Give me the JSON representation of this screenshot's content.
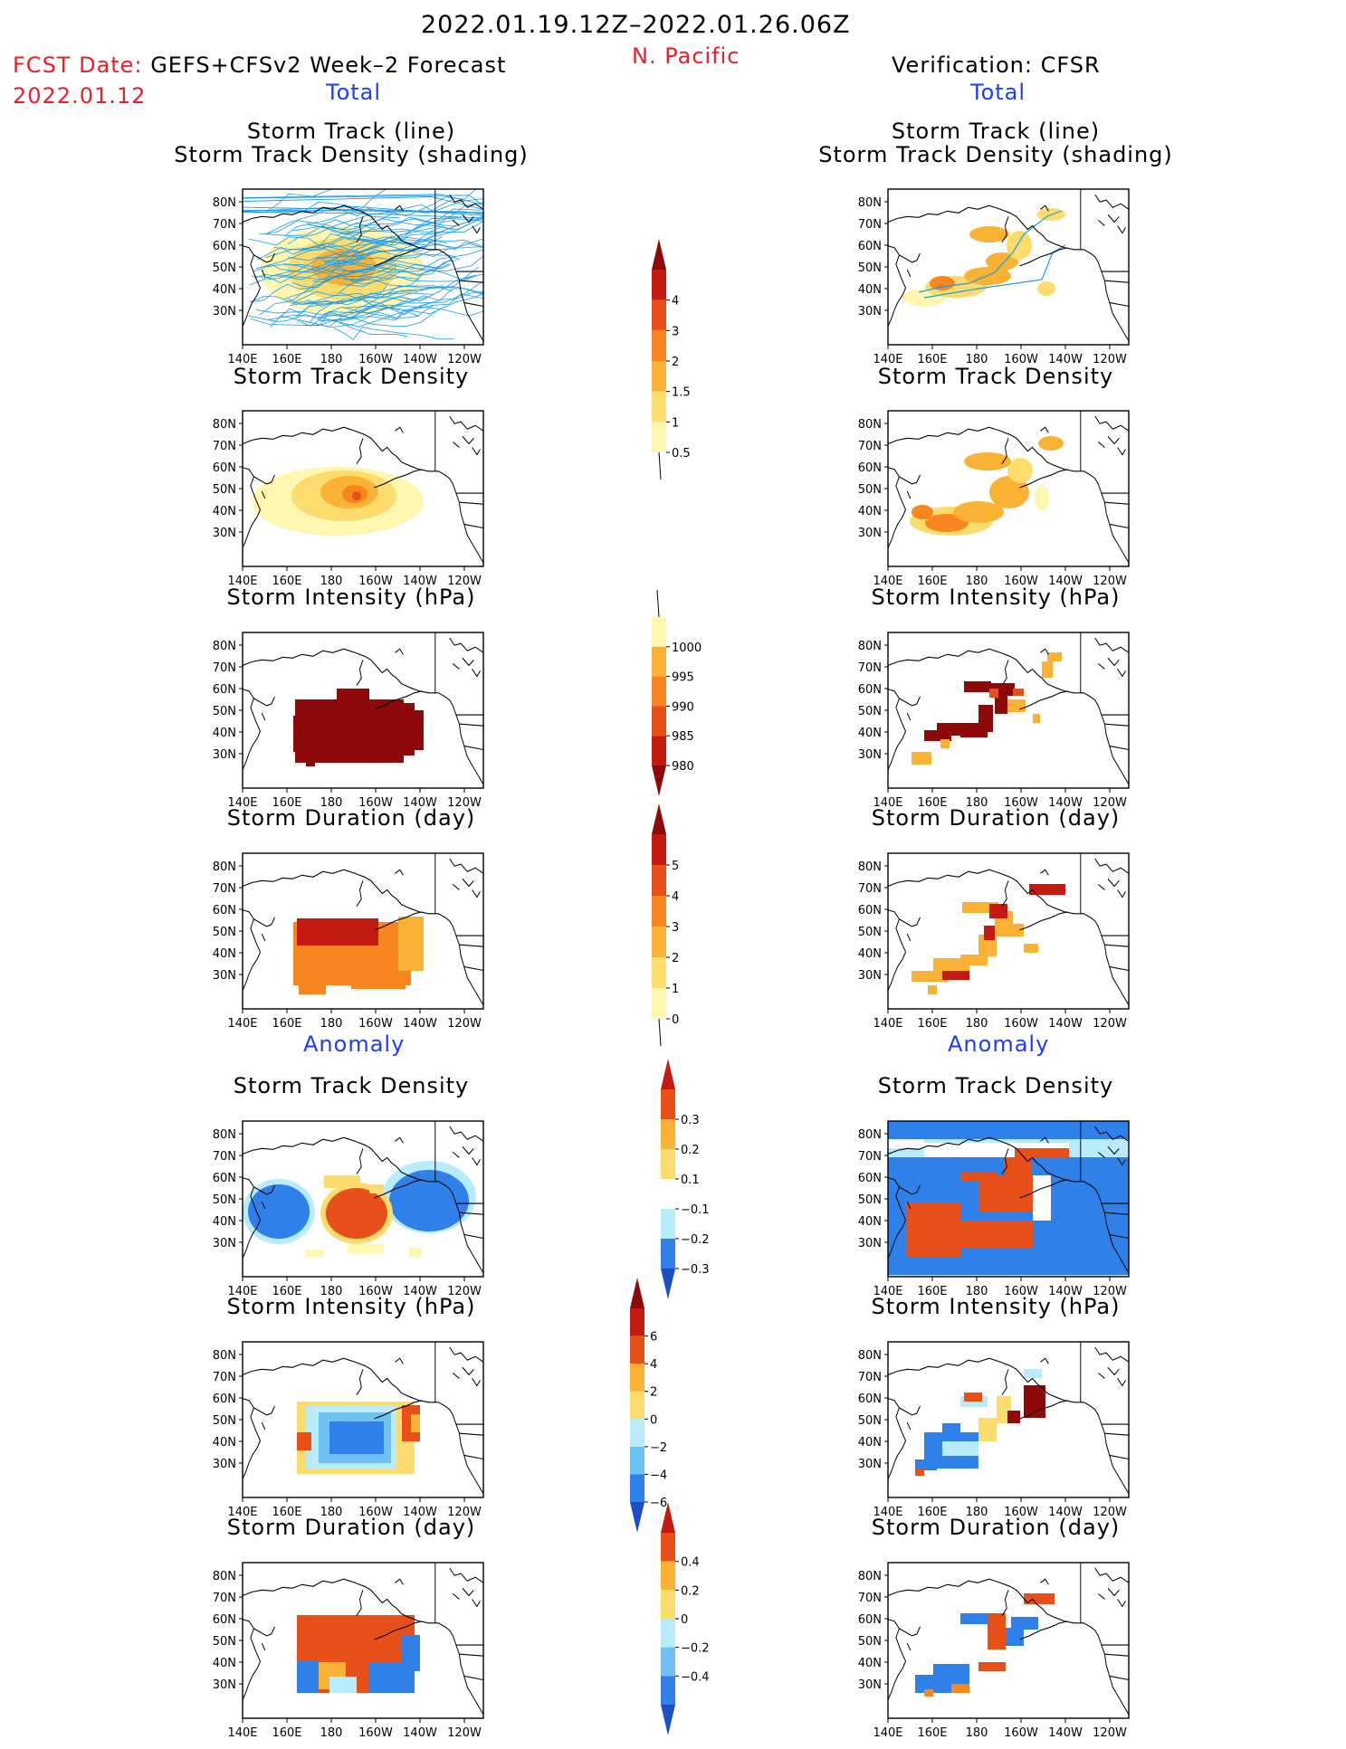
{
  "header": {
    "period": "2022.01.19.12Z–2022.01.26.06Z",
    "region": "N. Pacific",
    "fcst_prefix": "FCST Date:",
    "fcst_model": "GEFS+CFSv2 Week–2 Forecast",
    "fcst_date": "2022.01.12",
    "verification": "Verification: CFSR",
    "left_total": "Total",
    "right_total": "Total",
    "left_anomaly": "Anomaly",
    "right_anomaly": "Anomaly"
  },
  "axes": {
    "lat_labels": [
      "80N",
      "70N",
      "60N",
      "50N",
      "40N",
      "30N"
    ],
    "lon_labels": [
      "140E",
      "160E",
      "180",
      "160W",
      "140W",
      "120W"
    ]
  },
  "panel_titles": {
    "track": [
      "Storm Track (line)",
      "Storm Track Density (shading)"
    ],
    "density": "Storm Track Density",
    "intensity": "Storm Intensity (hPa)",
    "duration": "Storm Duration (day)"
  },
  "colorbars": {
    "density": [
      "4",
      "3",
      "2",
      "1.5",
      "1",
      "0.5"
    ],
    "intensity": [
      "1000",
      "995",
      "990",
      "985",
      "980"
    ],
    "duration": [
      "5",
      "4",
      "3",
      "2",
      "1",
      "0"
    ],
    "density_anom": [
      "0.3",
      "0.2",
      "0.1",
      "−0.1",
      "−0.2",
      "−0.3"
    ],
    "intensity_anom": [
      "6",
      "4",
      "2",
      "0",
      "−2",
      "−4",
      "−6"
    ],
    "duration_anom": [
      "0.4",
      "0.2",
      "0",
      "−0.2",
      "−0.4"
    ]
  },
  "colors": {
    "red_text": "#e8202a",
    "blue_text": "#1f3df0",
    "track_line": "#1e9be8",
    "warm": [
      "#fff6b0",
      "#fbdc6c",
      "#f9b233",
      "#f7861e",
      "#e8501a",
      "#c41a12",
      "#8e0a0a"
    ],
    "cool": [
      "#b8ecfa",
      "#6fc0f5",
      "#2f80e8",
      "#1a4fc8"
    ]
  }
}
